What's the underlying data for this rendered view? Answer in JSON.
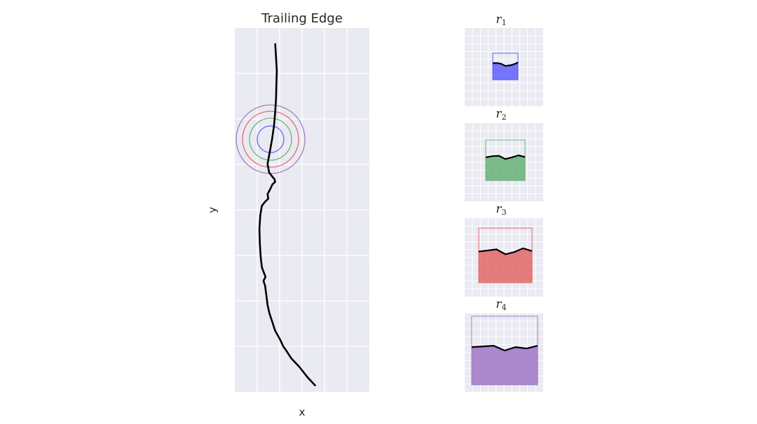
{
  "chart_data": [
    {
      "type": "line",
      "title": "Trailing Edge",
      "xlabel": "x",
      "ylabel": "y",
      "grid": true,
      "background": "#eaeaf2",
      "series": [
        {
          "color": "#000000",
          "x": [
            0.4,
            0.402,
            0.404,
            0.403,
            0.402,
            0.4,
            0.397,
            0.392,
            0.386,
            0.381,
            0.385,
            0.392,
            0.398,
            0.4,
            0.393,
            0.387,
            0.381,
            0.383,
            0.375,
            0.367,
            0.363,
            0.361,
            0.362,
            0.364,
            0.367,
            0.37,
            0.376,
            0.371,
            0.375,
            0.378,
            0.381,
            0.386,
            0.393,
            0.4,
            0.412,
            0.42,
            0.426,
            0.44,
            0.46,
            0.48,
            0.5
          ],
          "y": [
            1.0,
            0.96,
            0.92,
            0.88,
            0.84,
            0.8,
            0.76,
            0.72,
            0.68,
            0.65,
            0.625,
            0.614,
            0.606,
            0.598,
            0.59,
            0.575,
            0.562,
            0.549,
            0.54,
            0.528,
            0.5,
            0.46,
            0.42,
            0.38,
            0.35,
            0.34,
            0.322,
            0.31,
            0.296,
            0.27,
            0.24,
            0.215,
            0.19,
            0.165,
            0.14,
            0.12,
            0.11,
            0.085,
            0.06,
            0.03,
            0.005
          ]
        }
      ],
      "circles": [
        {
          "name": "r1",
          "color": "#4c4cff"
        },
        {
          "name": "r2",
          "color": "#55a868"
        },
        {
          "name": "r3",
          "color": "#e05555"
        },
        {
          "name": "r4",
          "color": "#9467bd"
        }
      ]
    },
    {
      "type": "area",
      "title": "r",
      "subscript": "1",
      "color": "#4c4cff",
      "window": 0.2,
      "profile": [
        0.62,
        0.63,
        0.6,
        0.52,
        0.54,
        0.58,
        0.65
      ]
    },
    {
      "type": "area",
      "title": "r",
      "subscript": "2",
      "color": "#55a868",
      "window": 0.4,
      "profile": [
        0.57,
        0.6,
        0.61,
        0.53,
        0.57,
        0.62,
        0.58
      ]
    },
    {
      "type": "area",
      "title": "r",
      "subscript": "3",
      "color": "#e05555",
      "window": 0.6,
      "profile": [
        0.57,
        0.59,
        0.61,
        0.52,
        0.56,
        0.63,
        0.58
      ]
    },
    {
      "type": "area",
      "title": "r",
      "subscript": "4",
      "color": "#9467bd",
      "window": 0.8,
      "profile": [
        0.55,
        0.56,
        0.57,
        0.5,
        0.55,
        0.53,
        0.57
      ]
    }
  ]
}
